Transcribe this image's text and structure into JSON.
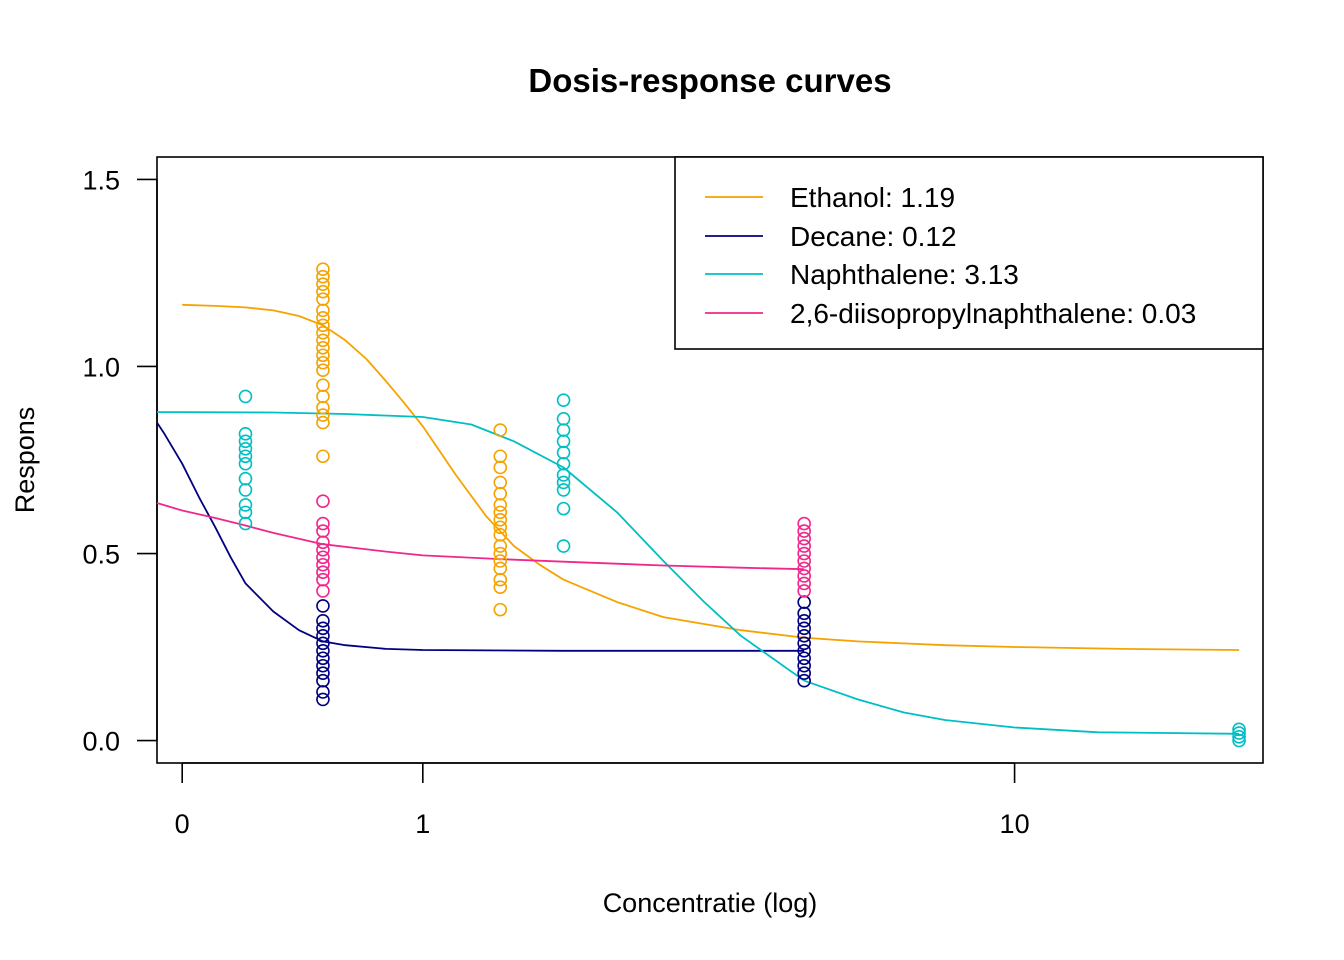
{
  "chart_data": {
    "type": "scatter",
    "title": "Dosis-response curves",
    "xlabel": "Concentratie (log)",
    "ylabel": "Respons",
    "x_scale": "log1p",
    "xlim": [
      -0.07,
      21.5
    ],
    "ylim": [
      -0.06,
      1.56
    ],
    "x_ticks": [
      {
        "value": 0,
        "label": "0"
      },
      {
        "value": 1,
        "label": "1"
      },
      {
        "value": 10,
        "label": "10"
      }
    ],
    "y_ticks": [
      {
        "value": 0.0,
        "label": "0.0"
      },
      {
        "value": 0.5,
        "label": "0.5"
      },
      {
        "value": 1.0,
        "label": "1.0"
      },
      {
        "value": 1.5,
        "label": "1.5"
      }
    ],
    "legend_position": "top-right",
    "series": [
      {
        "name": "Ethanol: 1.19",
        "color": "#F5A300",
        "points": [
          {
            "x": 0.5,
            "y": [
              0.76,
              0.85,
              0.87,
              0.89,
              0.92,
              0.95,
              0.99,
              1.01,
              1.03,
              1.05,
              1.07,
              1.09,
              1.11,
              1.13,
              1.15,
              1.18,
              1.2,
              1.22,
              1.24,
              1.26
            ]
          },
          {
            "x": 1.5,
            "y": [
              0.35,
              0.41,
              0.43,
              0.46,
              0.48,
              0.5,
              0.52,
              0.55,
              0.57,
              0.59,
              0.61,
              0.63,
              0.66,
              0.69,
              0.73,
              0.76,
              0.83
            ]
          }
        ],
        "curve": [
          [
            0,
            1.165
          ],
          [
            0.1,
            1.162
          ],
          [
            0.2,
            1.158
          ],
          [
            0.3,
            1.15
          ],
          [
            0.4,
            1.135
          ],
          [
            0.5,
            1.11
          ],
          [
            0.6,
            1.07
          ],
          [
            0.7,
            1.02
          ],
          [
            0.8,
            0.96
          ],
          [
            0.9,
            0.9
          ],
          [
            1.0,
            0.84
          ],
          [
            1.2,
            0.71
          ],
          [
            1.4,
            0.6
          ],
          [
            1.6,
            0.52
          ],
          [
            1.8,
            0.47
          ],
          [
            2.0,
            0.43
          ],
          [
            2.5,
            0.37
          ],
          [
            3.0,
            0.33
          ],
          [
            4.0,
            0.295
          ],
          [
            5.0,
            0.275
          ],
          [
            6.0,
            0.265
          ],
          [
            8.0,
            0.255
          ],
          [
            10.0,
            0.25
          ],
          [
            14.0,
            0.245
          ],
          [
            20.0,
            0.242
          ]
        ]
      },
      {
        "name": "Decane: 0.12",
        "color": "#000080",
        "points": [
          {
            "x": 0.5,
            "y": [
              0.11,
              0.13,
              0.16,
              0.18,
              0.2,
              0.22,
              0.24,
              0.26,
              0.28,
              0.3,
              0.32,
              0.36
            ]
          },
          {
            "x": 5,
            "y": [
              0.16,
              0.18,
              0.2,
              0.22,
              0.24,
              0.26,
              0.28,
              0.3,
              0.32,
              0.34,
              0.37
            ]
          }
        ],
        "curve": [
          [
            -0.07,
            0.85
          ],
          [
            -0.05,
            0.82
          ],
          [
            0.0,
            0.74
          ],
          [
            0.05,
            0.65
          ],
          [
            0.1,
            0.57
          ],
          [
            0.15,
            0.49
          ],
          [
            0.2,
            0.42
          ],
          [
            0.3,
            0.345
          ],
          [
            0.4,
            0.295
          ],
          [
            0.5,
            0.265
          ],
          [
            0.6,
            0.255
          ],
          [
            0.8,
            0.245
          ],
          [
            1.0,
            0.242
          ],
          [
            2.0,
            0.24
          ],
          [
            5.0,
            0.24
          ]
        ]
      },
      {
        "name": "Naphthalene: 3.13",
        "color": "#00BFC4",
        "points": [
          {
            "x": 0.2,
            "y": [
              0.58,
              0.61,
              0.63,
              0.67,
              0.7,
              0.74,
              0.76,
              0.78,
              0.8,
              0.82,
              0.92
            ]
          },
          {
            "x": 2,
            "y": [
              0.52,
              0.62,
              0.67,
              0.69,
              0.71,
              0.74,
              0.77,
              0.8,
              0.83,
              0.86,
              0.91
            ]
          },
          {
            "x": 20,
            "y": [
              0.0,
              0.01,
              0.02,
              0.03
            ]
          }
        ],
        "curve": [
          [
            -0.07,
            0.878
          ],
          [
            0.0,
            0.878
          ],
          [
            0.3,
            0.877
          ],
          [
            0.6,
            0.873
          ],
          [
            1.0,
            0.865
          ],
          [
            1.3,
            0.845
          ],
          [
            1.6,
            0.8
          ],
          [
            2.0,
            0.73
          ],
          [
            2.5,
            0.61
          ],
          [
            3.0,
            0.48
          ],
          [
            3.5,
            0.37
          ],
          [
            4.0,
            0.28
          ],
          [
            5.0,
            0.16
          ],
          [
            6.0,
            0.11
          ],
          [
            7.0,
            0.075
          ],
          [
            8.0,
            0.055
          ],
          [
            10.0,
            0.035
          ],
          [
            13.0,
            0.022
          ],
          [
            20.0,
            0.018
          ]
        ]
      },
      {
        "name": "2,6-diisopropylnaphthalene: 0.03",
        "color": "#F0288C",
        "points": [
          {
            "x": 0.5,
            "y": [
              0.4,
              0.43,
              0.45,
              0.47,
              0.49,
              0.51,
              0.53,
              0.56,
              0.58,
              0.64
            ]
          },
          {
            "x": 5,
            "y": [
              0.4,
              0.42,
              0.44,
              0.46,
              0.48,
              0.5,
              0.52,
              0.54,
              0.56,
              0.58
            ]
          }
        ],
        "curve": [
          [
            -0.07,
            0.635
          ],
          [
            0.0,
            0.615
          ],
          [
            0.1,
            0.595
          ],
          [
            0.2,
            0.575
          ],
          [
            0.3,
            0.555
          ],
          [
            0.5,
            0.525
          ],
          [
            0.8,
            0.505
          ],
          [
            1.0,
            0.495
          ],
          [
            1.5,
            0.485
          ],
          [
            2.0,
            0.478
          ],
          [
            3.0,
            0.468
          ],
          [
            4.0,
            0.462
          ],
          [
            5.0,
            0.458
          ]
        ]
      }
    ]
  }
}
